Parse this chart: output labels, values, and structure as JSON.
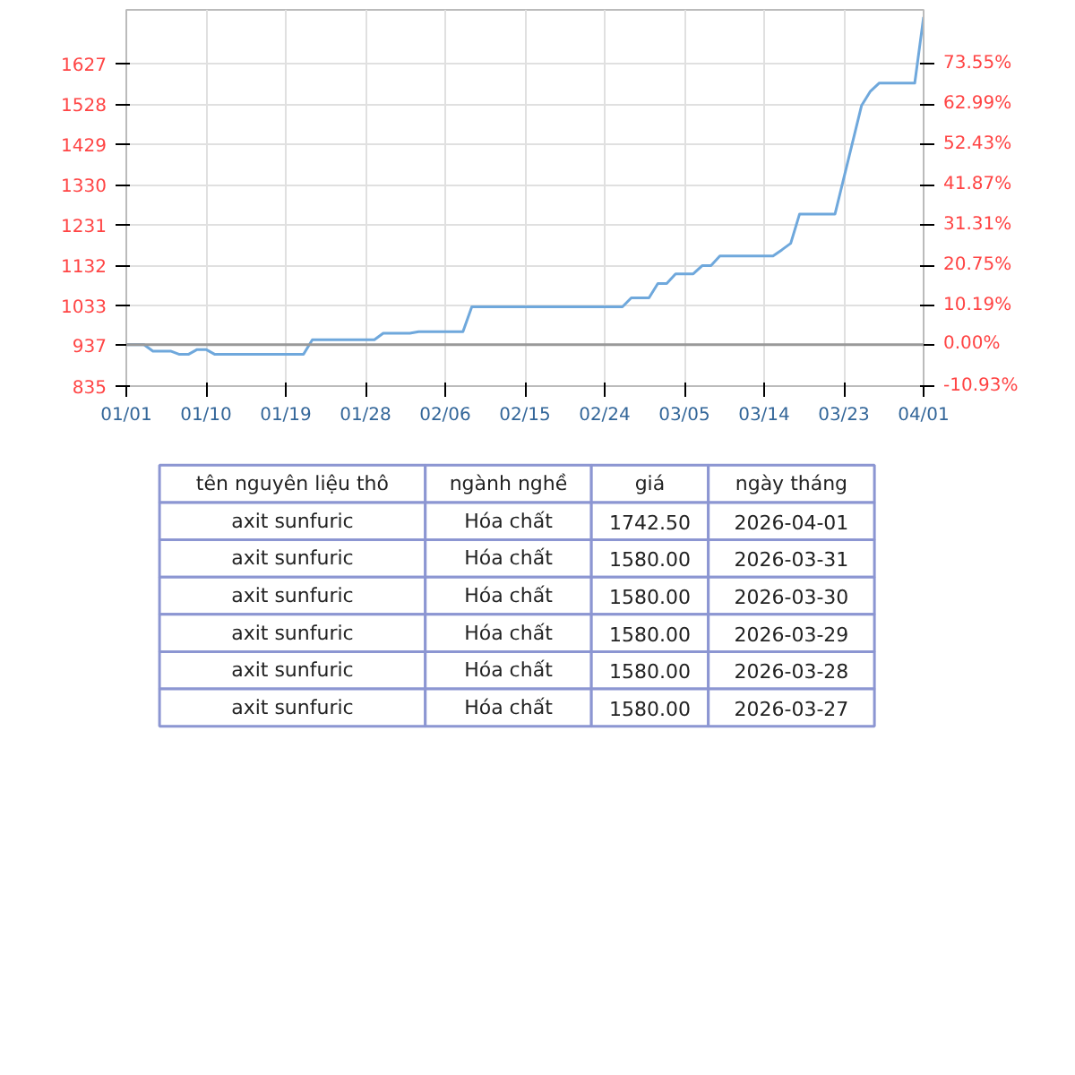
{
  "chart_data": {
    "type": "line",
    "x": [
      "2026-01-01",
      "2026-01-03",
      "2026-01-04",
      "2026-01-06",
      "2026-01-07",
      "2026-01-08",
      "2026-01-09",
      "2026-01-10",
      "2026-01-11",
      "2026-01-21",
      "2026-01-22",
      "2026-01-29",
      "2026-01-30",
      "2026-02-02",
      "2026-02-03",
      "2026-02-08",
      "2026-02-09",
      "2026-02-26",
      "2026-02-27",
      "2026-03-01",
      "2026-03-02",
      "2026-03-03",
      "2026-03-04",
      "2026-03-06",
      "2026-03-07",
      "2026-03-08",
      "2026-03-09",
      "2026-03-15",
      "2026-03-16",
      "2026-03-17",
      "2026-03-18",
      "2026-03-22",
      "2026-03-25",
      "2026-03-26",
      "2026-03-27",
      "2026-03-28",
      "2026-03-29",
      "2026-03-30",
      "2026-03-31",
      "2026-04-01"
    ],
    "series": [
      {
        "color": "#6fa8dc",
        "values": [
          937,
          937,
          921,
          921,
          913,
          913,
          925,
          925,
          913,
          913,
          949,
          949,
          965,
          965,
          969,
          969,
          1030,
          1030,
          1052,
          1052,
          1087,
          1087,
          1111,
          1111,
          1131,
          1131,
          1155,
          1155,
          1170,
          1186,
          1258,
          1258,
          1525,
          1560,
          1580,
          1580,
          1580,
          1580,
          1580,
          1742.5
        ]
      }
    ],
    "xlim": [
      "2026-01-01",
      "2026-04-01"
    ],
    "xticks": [
      {
        "value": "2026-01-01",
        "label": "01/01"
      },
      {
        "value": "2026-01-10",
        "label": "01/10"
      },
      {
        "value": "2026-01-19",
        "label": "01/19"
      },
      {
        "value": "2026-01-28",
        "label": "01/28"
      },
      {
        "value": "2026-02-06",
        "label": "02/06"
      },
      {
        "value": "2026-02-15",
        "label": "02/15"
      },
      {
        "value": "2026-02-24",
        "label": "02/24"
      },
      {
        "value": "2026-03-05",
        "label": "03/05"
      },
      {
        "value": "2026-03-14",
        "label": "03/14"
      },
      {
        "value": "2026-03-23",
        "label": "03/23"
      },
      {
        "value": "2026-04-01",
        "label": "04/01"
      }
    ],
    "ylim": [
      835,
      1760
    ],
    "yticks": [
      835,
      937,
      1033,
      1132,
      1231,
      1330,
      1429,
      1528,
      1627
    ],
    "y2lim": [
      -10.93,
      87.74
    ],
    "y2ticks": [
      {
        "value": -10.93,
        "label": "-10.93%"
      },
      {
        "value": 0,
        "label": "0.00%"
      },
      {
        "value": 10.19,
        "label": "10.19%"
      },
      {
        "value": 20.75,
        "label": "20.75%"
      },
      {
        "value": 31.31,
        "label": "31.31%"
      },
      {
        "value": 41.87,
        "label": "41.87%"
      },
      {
        "value": 52.43,
        "label": "52.43%"
      },
      {
        "value": 62.99,
        "label": "62.99%"
      },
      {
        "value": 73.55,
        "label": "73.55%"
      }
    ],
    "ref_lines": [
      {
        "axis": "y",
        "value": 937,
        "color": "#999999"
      }
    ],
    "grid": true,
    "annotations": [
      "tên nguyên liệu thô",
      "ngành nghề",
      "giá",
      "ngày tháng",
      "axit sunfuric",
      "Hóa chất",
      "1742.50",
      "2026-04-01",
      "axit sunfuric",
      "Hóa chất",
      "1580.00",
      "2026-03-31",
      "axit sunfuric",
      "Hóa chất",
      "1580.00",
      "2026-03-30",
      "axit sunfuric",
      "Hóa chất",
      "1580.00",
      "2026-03-29",
      "axit sunfuric",
      "Hóa chất",
      "1580.00",
      "2026-03-28",
      "axit sunfuric",
      "Hóa chất",
      "1580.00",
      "2026-03-27"
    ]
  }
}
